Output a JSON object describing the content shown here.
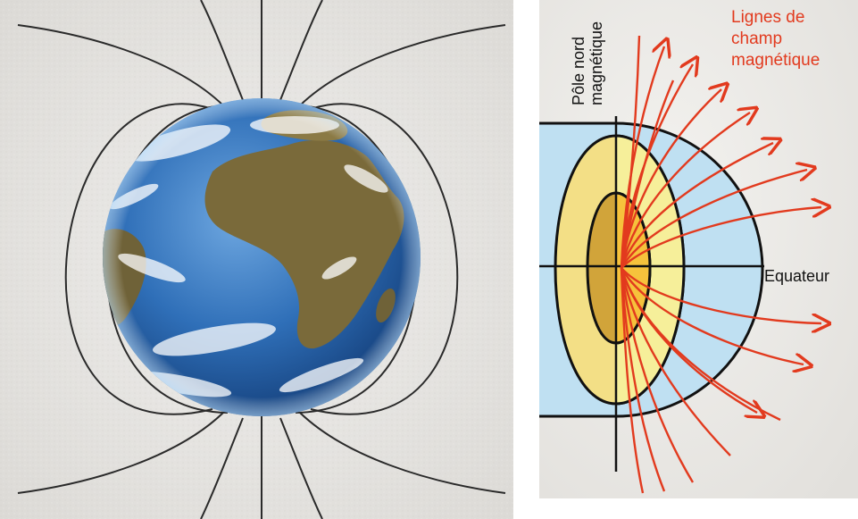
{
  "right_diagram": {
    "label_field_lines": "Lignes de\nchamp\nmagnétique",
    "label_north_pole": "Pôle nord\nmagnétique",
    "label_equator": "Equateur"
  },
  "colors": {
    "left_background": "#e7e5e1",
    "field_line_black": "#2a2a2a",
    "ocean_blue": "#2f6fb8",
    "land_brown": "#7a6a3a",
    "sky_blue_layer": "#bfe0f2",
    "mantle_yellow": "#f3df86",
    "inner_yellow": "#f6ef9a",
    "outer_core": "#d1a43a",
    "inner_core": "#f6c23c",
    "field_line_red": "#e23a1e"
  }
}
